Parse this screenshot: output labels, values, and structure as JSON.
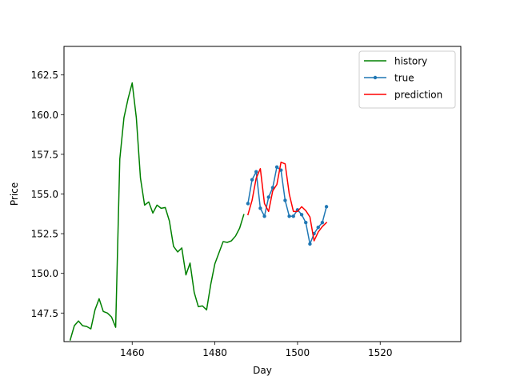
{
  "chart_data": {
    "type": "line",
    "xlabel": "Day",
    "ylabel": "Price",
    "xlim": [
      1443.5,
      1539.5
    ],
    "ylim": [
      145.7,
      164.3
    ],
    "xticks": [
      1460,
      1480,
      1500,
      1520
    ],
    "yticks": [
      147.5,
      150.0,
      152.5,
      155.0,
      157.5,
      160.0,
      162.5
    ],
    "ytick_labels": [
      "147.5",
      "150.0",
      "152.5",
      "155.0",
      "157.5",
      "160.0",
      "162.5"
    ],
    "grid": false,
    "legend_position": "top-right",
    "series": [
      {
        "name": "history",
        "color": "#008000",
        "marker": false,
        "x": [
          1445,
          1446,
          1447,
          1448,
          1449,
          1450,
          1451,
          1452,
          1453,
          1454,
          1455,
          1456,
          1457,
          1458,
          1459,
          1460,
          1461,
          1462,
          1463,
          1464,
          1465,
          1466,
          1467,
          1468,
          1469,
          1470,
          1471,
          1472,
          1473,
          1474,
          1475,
          1476,
          1477,
          1478,
          1479,
          1480,
          1481,
          1482,
          1483,
          1484,
          1485,
          1486,
          1487
        ],
        "y": [
          145.8,
          146.7,
          147.0,
          146.7,
          146.65,
          146.5,
          147.7,
          148.4,
          147.6,
          147.5,
          147.25,
          146.6,
          157.2,
          159.8,
          161.0,
          162.0,
          159.8,
          156.0,
          154.3,
          154.5,
          153.8,
          154.3,
          154.1,
          154.15,
          153.3,
          151.7,
          151.35,
          151.6,
          149.9,
          150.65,
          148.8,
          147.9,
          147.95,
          147.7,
          149.3,
          150.6,
          151.3,
          152.0,
          151.95,
          152.05,
          152.35,
          152.85,
          153.7
        ]
      },
      {
        "name": "true",
        "color": "#1f77b4",
        "marker": true,
        "x": [
          1488,
          1489,
          1490,
          1491,
          1492,
          1493,
          1494,
          1495,
          1496,
          1497,
          1498,
          1499,
          1500,
          1501,
          1502,
          1503,
          1504,
          1505,
          1506,
          1507
        ],
        "y": [
          154.4,
          155.9,
          156.4,
          154.1,
          153.6,
          154.8,
          155.4,
          156.7,
          156.5,
          154.6,
          153.6,
          153.6,
          154.0,
          153.7,
          153.2,
          151.85,
          152.5,
          152.9,
          153.2,
          154.2
        ]
      },
      {
        "name": "prediction",
        "color": "#ff0000",
        "marker": false,
        "x": [
          1488,
          1489,
          1490,
          1491,
          1492,
          1493,
          1494,
          1495,
          1496,
          1497,
          1498,
          1499,
          1500,
          1501,
          1502,
          1503,
          1504,
          1505,
          1506,
          1507
        ],
        "y": [
          153.7,
          154.6,
          156.0,
          156.6,
          154.4,
          153.9,
          155.2,
          155.6,
          157.0,
          156.9,
          155.0,
          153.9,
          153.9,
          154.2,
          153.95,
          153.55,
          152.05,
          152.6,
          152.95,
          153.2
        ]
      }
    ]
  }
}
